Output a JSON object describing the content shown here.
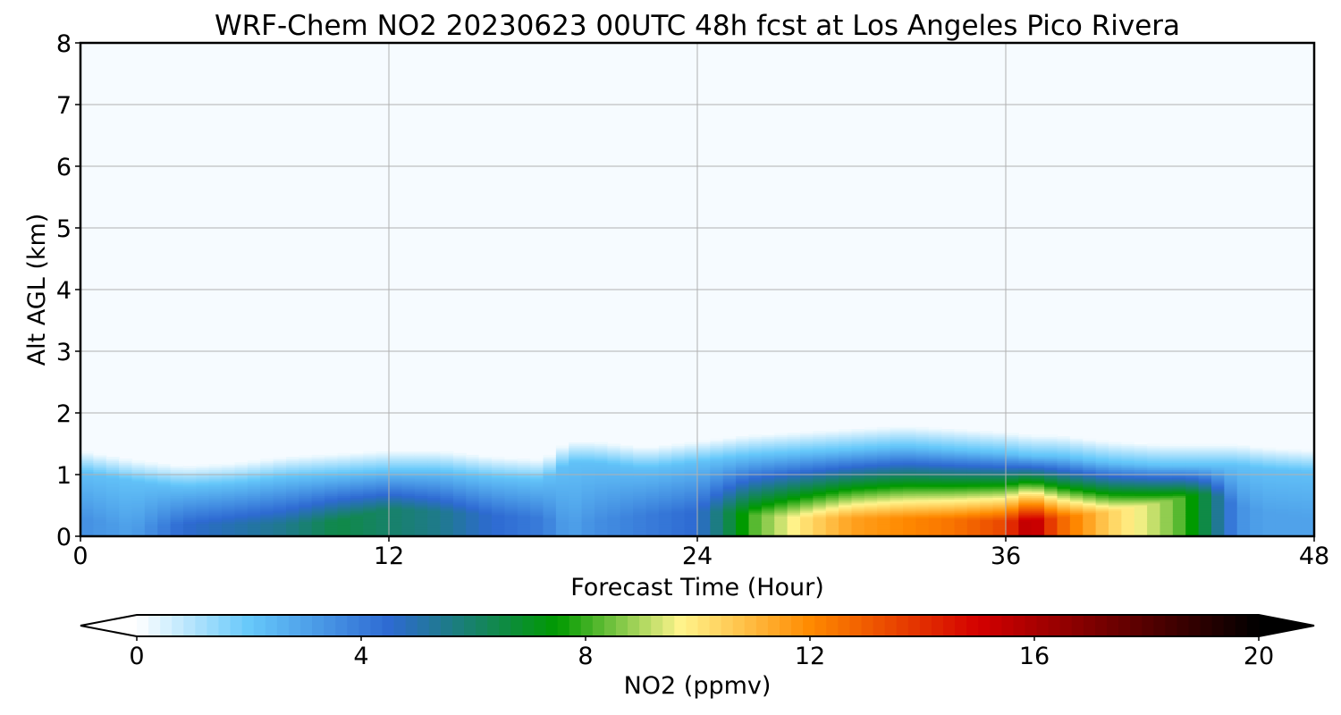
{
  "chart_data": {
    "type": "heatmap",
    "title": "WRF-Chem NO2  20230623 00UTC 48h fcst at Los Angeles Pico Rivera",
    "xlabel": "Forecast Time (Hour)",
    "ylabel": "Alt AGL (km)",
    "xlim": [
      0,
      48
    ],
    "ylim": [
      0,
      8
    ],
    "xticks": [
      "0",
      "12",
      "24",
      "36",
      "48"
    ],
    "xtick_values": [
      0,
      12,
      24,
      36,
      48
    ],
    "yticks": [
      "0",
      "1",
      "2",
      "3",
      "4",
      "5",
      "6",
      "7",
      "8"
    ],
    "ytick_values": [
      0,
      1,
      2,
      3,
      4,
      5,
      6,
      7,
      8
    ],
    "grid": true,
    "colorbar": {
      "label": "NO2  (ppmv)",
      "range": [
        0,
        20
      ],
      "ticks": [
        "0",
        "4",
        "8",
        "12",
        "16",
        "20"
      ],
      "tick_values": [
        0,
        4,
        8,
        12,
        16,
        20
      ],
      "extend": "both",
      "orientation": "horizontal",
      "colors": [
        "#ffffff",
        "#66c8fa",
        "#2e6ad2",
        "#009a00",
        "#fff48c",
        "#ff8a00",
        "#d40000",
        "#000000"
      ],
      "color_stops": [
        0,
        2,
        4.5,
        7.5,
        9.7,
        12,
        15,
        20
      ]
    },
    "field": {
      "description": "NO2 concentration profile over forecast hours; values in ppmv",
      "hours": [
        0,
        2,
        4,
        6,
        8,
        10,
        12,
        14,
        16,
        18,
        19,
        20,
        22,
        24,
        25,
        26,
        28,
        30,
        32,
        34,
        36,
        37,
        38,
        40,
        42,
        43,
        44,
        45,
        46,
        48
      ],
      "boundary_layer_top_km": [
        1.05,
        0.9,
        0.8,
        0.85,
        0.95,
        1.0,
        1.05,
        1.05,
        0.95,
        0.9,
        1.2,
        1.2,
        1.1,
        1.2,
        1.25,
        1.3,
        1.35,
        1.4,
        1.45,
        1.4,
        1.35,
        1.3,
        1.3,
        1.2,
        1.15,
        1.15,
        1.15,
        1.15,
        1.1,
        1.05
      ],
      "surface_no2_ppmv": [
        3.5,
        3.0,
        4.5,
        5.0,
        5.5,
        6.5,
        6.0,
        5.5,
        4.5,
        4.0,
        3.0,
        3.5,
        4.0,
        4.5,
        6.0,
        8.0,
        10.0,
        11.5,
        12.0,
        12.5,
        13.5,
        16.0,
        13.0,
        10.5,
        9.0,
        8.0,
        6.0,
        3.5,
        3.0,
        3.0
      ],
      "peak_height_km": [
        0.3,
        0.15,
        0.2,
        0.2,
        0.2,
        0.25,
        0.45,
        0.4,
        0.35,
        0.3,
        0.2,
        0.25,
        0.35,
        0.4,
        0.4,
        0.35,
        0.3,
        0.3,
        0.3,
        0.28,
        0.25,
        0.25,
        0.3,
        0.4,
        0.55,
        0.65,
        0.7,
        0.5,
        0.4,
        0.3
      ]
    }
  }
}
